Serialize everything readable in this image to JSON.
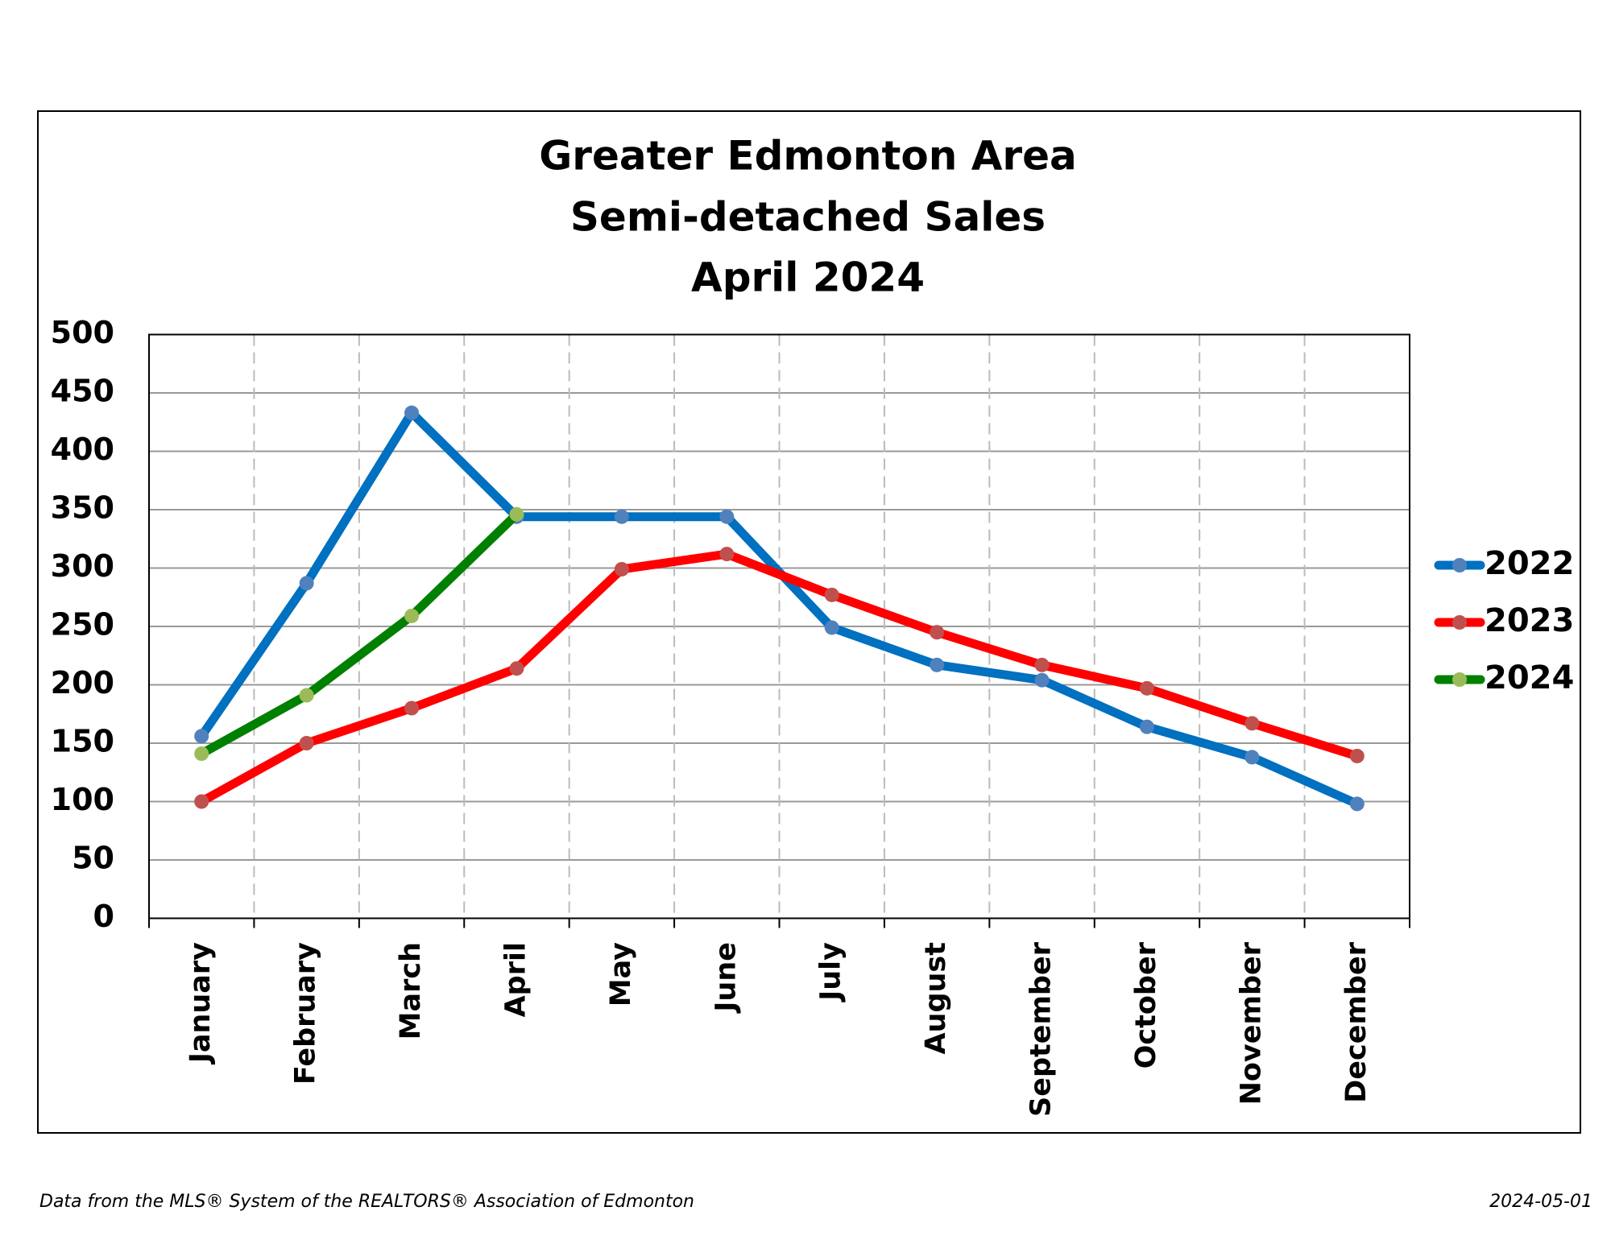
{
  "chart_data": {
    "type": "line",
    "title": [
      "Greater Edmonton Area",
      "Semi-detached Sales",
      "April 2024"
    ],
    "categories": [
      "January",
      "February",
      "March",
      "April",
      "May",
      "June",
      "July",
      "August",
      "September",
      "October",
      "November",
      "December"
    ],
    "series": [
      {
        "name": "2022",
        "color": "#0070c0",
        "marker_color": "#4f81bd",
        "values": [
          156,
          287,
          433,
          344,
          344,
          344,
          249,
          217,
          204,
          164,
          138,
          98
        ]
      },
      {
        "name": "2023",
        "color": "#ff0000",
        "marker_color": "#c0504d",
        "values": [
          100,
          150,
          180,
          214,
          299,
          312,
          277,
          245,
          217,
          197,
          167,
          139
        ]
      },
      {
        "name": "2024",
        "color": "#008000",
        "marker_color": "#9bbb59",
        "values": [
          141,
          191,
          259,
          346,
          null,
          null,
          null,
          null,
          null,
          null,
          null,
          null
        ]
      }
    ],
    "ylim": [
      0,
      500
    ],
    "yticks": [
      0,
      50,
      100,
      150,
      200,
      250,
      300,
      350,
      400,
      450,
      500
    ],
    "grid": true,
    "legend": "right",
    "footer": {
      "source": "Data from the MLS® System of the REALTORS® Association of Edmonton",
      "date": "2024-05-01"
    }
  }
}
